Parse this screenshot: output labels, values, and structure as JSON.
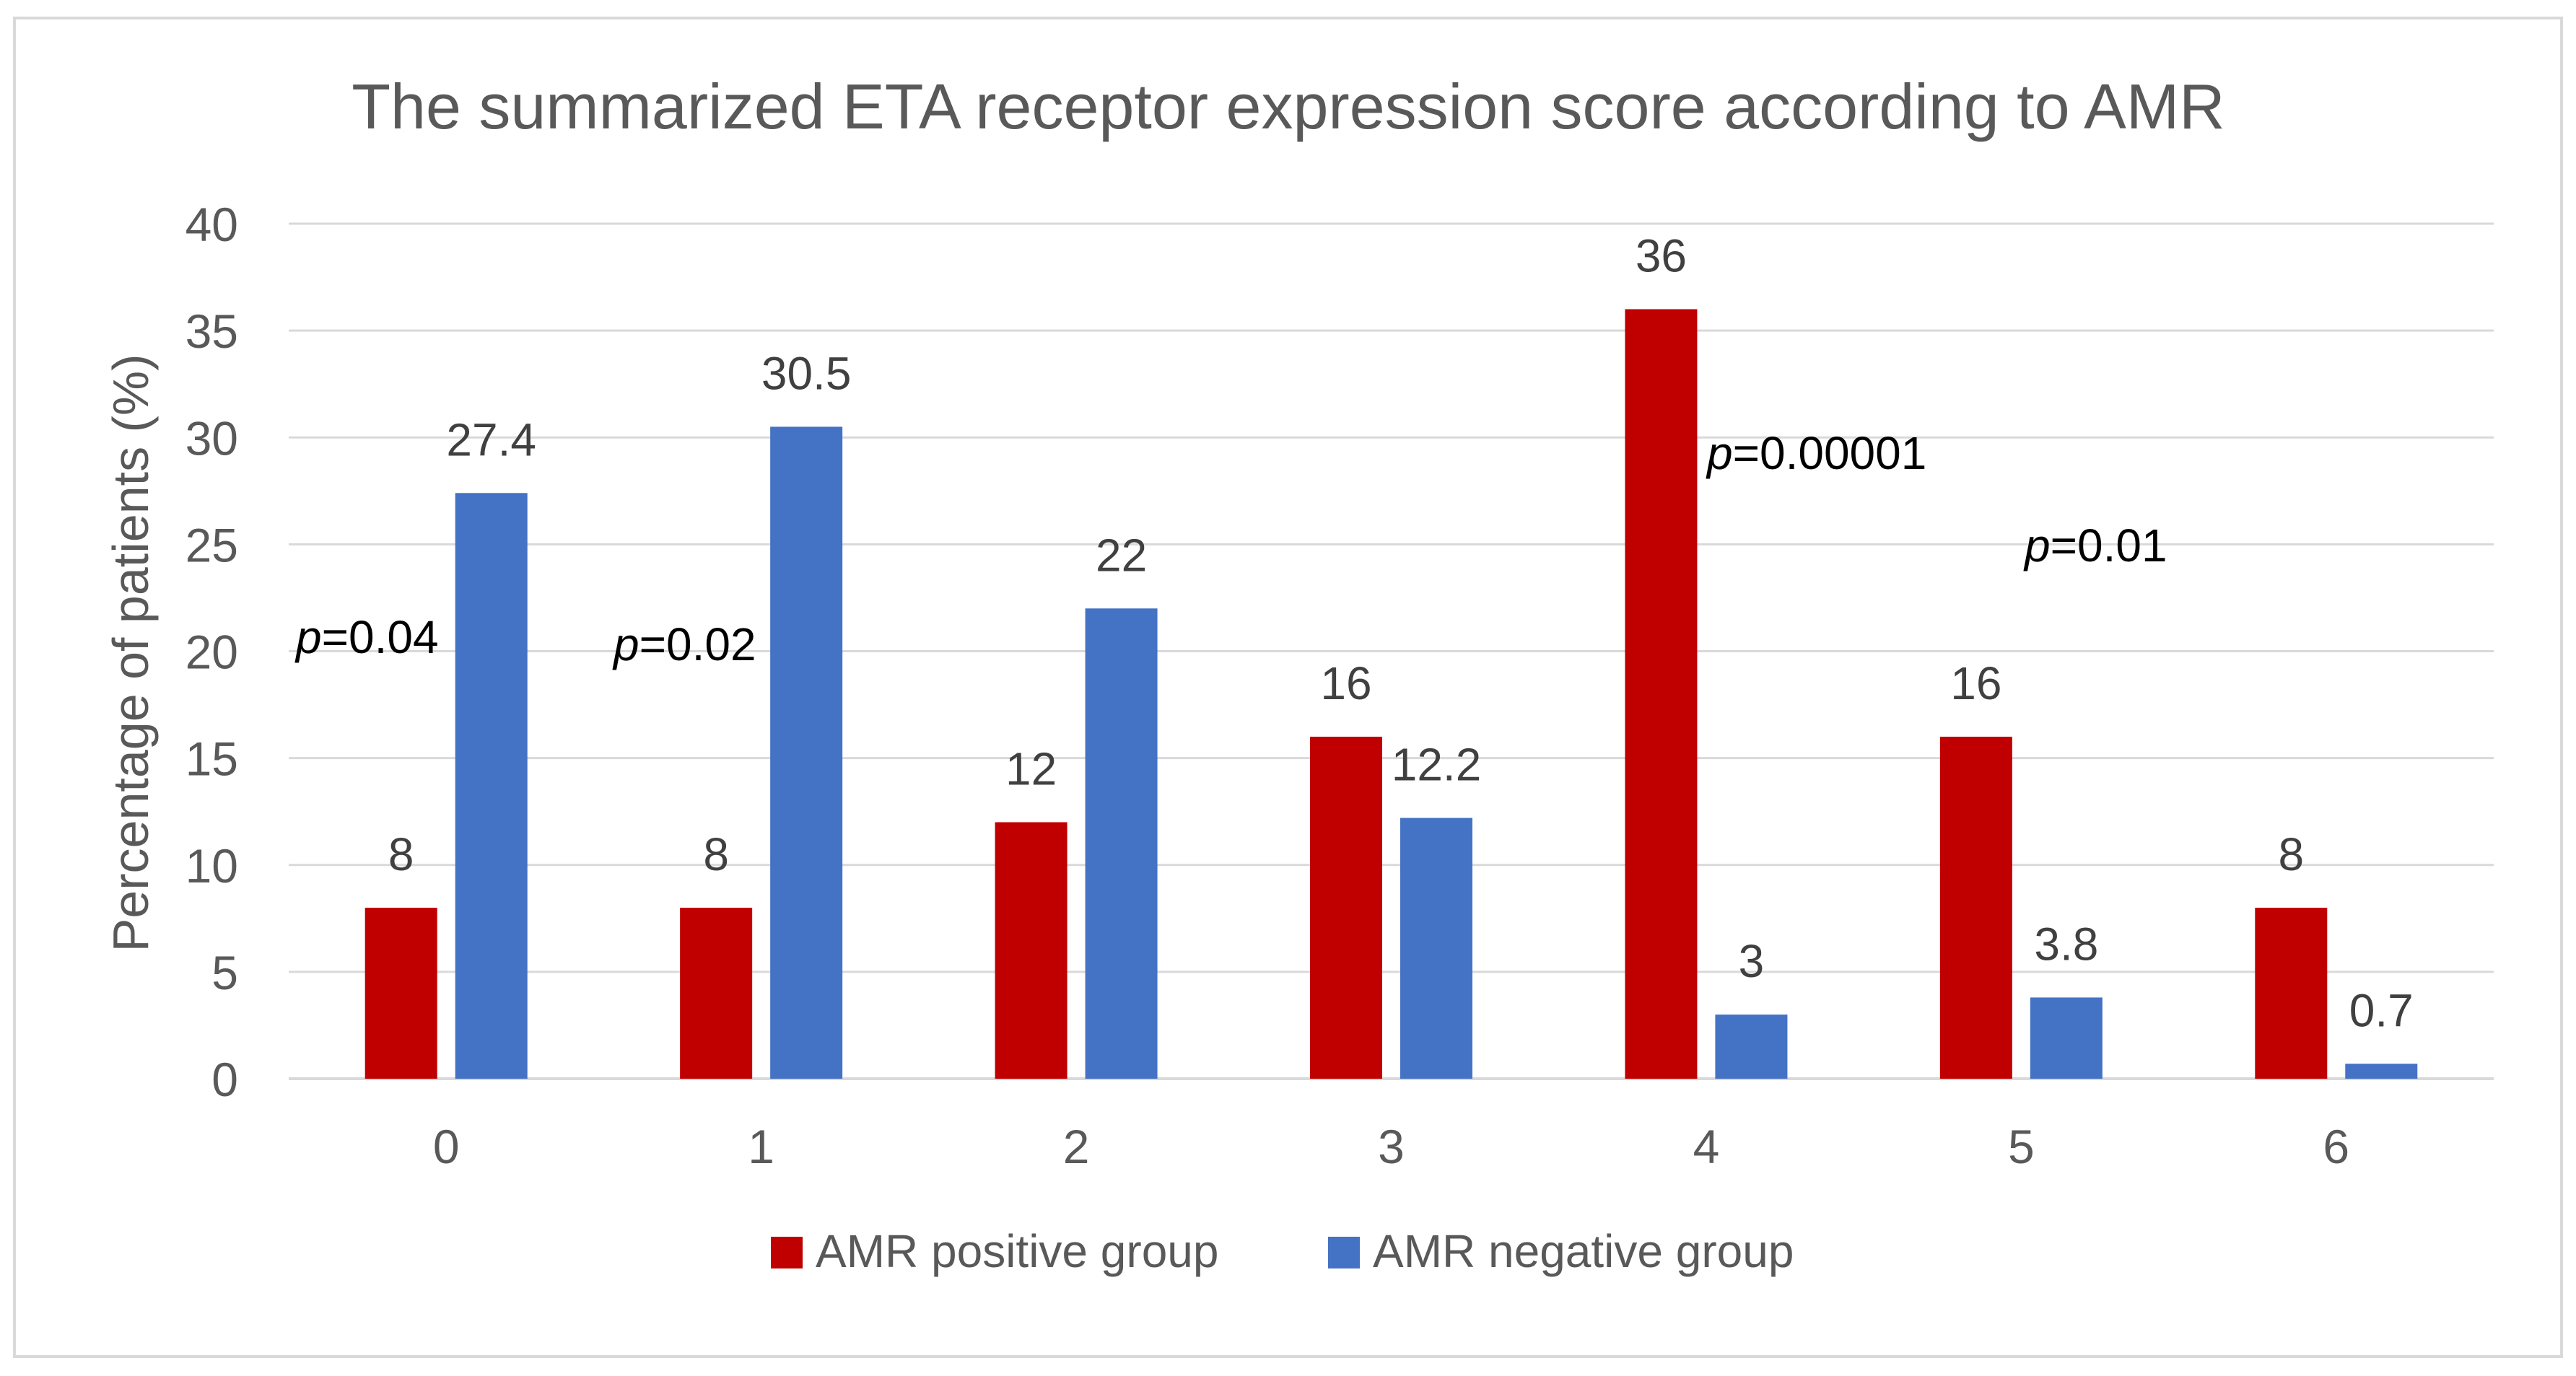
{
  "chart_data": {
    "type": "bar",
    "title": "The summarized ETA receptor expression score according to AMR",
    "xlabel": "",
    "ylabel": "Percentage  of patients (%)",
    "categories": [
      "0",
      "1",
      "2",
      "3",
      "4",
      "5",
      "6"
    ],
    "series": [
      {
        "name": "AMR positive group",
        "color": "#C00000",
        "values": [
          8,
          8,
          12,
          16,
          36,
          16,
          8
        ]
      },
      {
        "name": "AMR negative group",
        "color": "#4472C4",
        "values": [
          27.4,
          30.5,
          22,
          12.2,
          3,
          3.8,
          0.7
        ]
      }
    ],
    "data_labels": [
      [
        "8",
        "8",
        "12",
        "16",
        "36",
        "16",
        "8"
      ],
      [
        "27.4",
        "30.5",
        "22",
        "12.2",
        "3",
        "3.8",
        "0.7"
      ]
    ],
    "ylim": [
      0,
      40
    ],
    "yticks": [
      "0",
      "5",
      "10",
      "15",
      "20",
      "25",
      "30",
      "35",
      "40"
    ],
    "grid": true,
    "legend": "bottom",
    "annotations": [
      {
        "category": "0",
        "p_letter": "p",
        "text": "=0.04"
      },
      {
        "category": "1",
        "p_letter": "p",
        "text": "=0.02"
      },
      {
        "category": "4",
        "p_letter": "p",
        "text": "=0.00001"
      },
      {
        "category": "5",
        "p_letter": "p",
        "text": "=0.01"
      }
    ]
  }
}
